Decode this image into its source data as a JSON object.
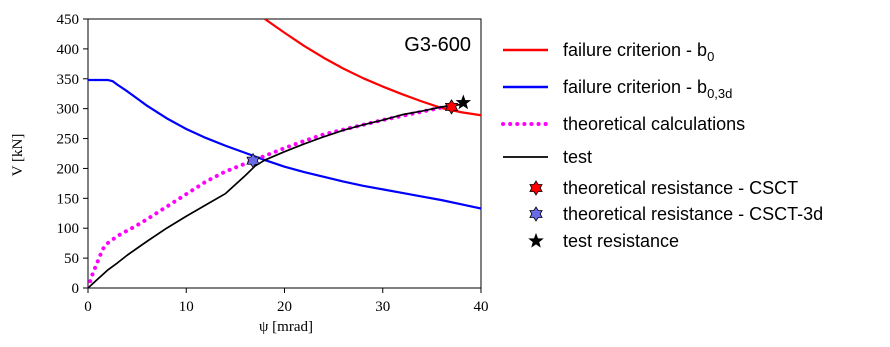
{
  "chart_data": {
    "type": "line",
    "title": "G3-600",
    "xlabel": "ψ [mrad]",
    "ylabel": "V [kN]",
    "xlim": [
      0,
      40
    ],
    "ylim": [
      0,
      450
    ],
    "xticks": [
      0,
      10,
      20,
      30,
      40
    ],
    "yticks": [
      0,
      50,
      100,
      150,
      200,
      250,
      300,
      350,
      400,
      450
    ],
    "grid": false,
    "legend_position": "right, outside plot",
    "series": [
      {
        "name": "failure criterion - b0",
        "name_main": "failure criterion  - b",
        "name_sub": "0",
        "style": "solid",
        "color": "#ff0000",
        "x": [
          18.0,
          20,
          22,
          24,
          26,
          28,
          30,
          32,
          34,
          36,
          38,
          40
        ],
        "y": [
          450,
          427,
          405,
          385,
          367,
          351,
          337,
          324,
          312,
          301,
          294,
          289
        ]
      },
      {
        "name": "failure criterion - b0,3d",
        "name_main": "failure criterion  - b",
        "name_sub": "0,3d",
        "style": "solid",
        "color": "#0000ff",
        "x": [
          0,
          2,
          2.5,
          3,
          4,
          5,
          6,
          8,
          10,
          12,
          14,
          16,
          18,
          20,
          22,
          24,
          26,
          28,
          30,
          32,
          34,
          36,
          38,
          40
        ],
        "y": [
          348,
          348,
          346,
          340,
          329,
          317,
          305,
          284,
          266,
          251,
          238,
          226,
          214,
          203,
          194,
          186,
          178,
          171,
          165,
          159,
          153,
          147,
          140,
          133
        ]
      },
      {
        "name": "theoretical calculations",
        "style": "dotted",
        "color": "#ff00ff",
        "x": [
          0,
          0.5,
          1,
          1.5,
          2,
          3,
          4,
          5,
          6,
          8,
          10,
          12,
          14,
          16,
          18,
          20,
          22,
          24,
          26,
          28,
          30,
          32,
          34,
          36,
          38,
          38.5
        ],
        "y": [
          0,
          25,
          45,
          65,
          75,
          87,
          96,
          105,
          115,
          136,
          157,
          178,
          195,
          208,
          221,
          234,
          246,
          257,
          265,
          273,
          281,
          288,
          295,
          302,
          308,
          312
        ]
      },
      {
        "name": "test",
        "style": "solid",
        "color": "#000000",
        "x": [
          0,
          1,
          2,
          3,
          4,
          6,
          8,
          10,
          12,
          14,
          16,
          17,
          18,
          20,
          22,
          24,
          26,
          28,
          30,
          32,
          34,
          36,
          37,
          38,
          38.2
        ],
        "y": [
          0,
          15,
          30,
          42,
          55,
          78,
          100,
          120,
          139,
          158,
          188,
          204,
          214,
          228,
          241,
          253,
          264,
          273,
          281,
          290,
          296,
          303,
          305,
          307,
          308
        ]
      }
    ],
    "points": [
      {
        "name": "theoretical resistance - CSCT",
        "x": 37.0,
        "y": 303,
        "color": "#ff0000",
        "shape": "star6"
      },
      {
        "name": "theoretical resistance - CSCT-3d",
        "x": 16.8,
        "y": 213,
        "color": "#6a6ae6",
        "shape": "star6"
      },
      {
        "name": "test resistance",
        "x": 38.2,
        "y": 310,
        "color": "#000000",
        "shape": "star5"
      }
    ]
  }
}
